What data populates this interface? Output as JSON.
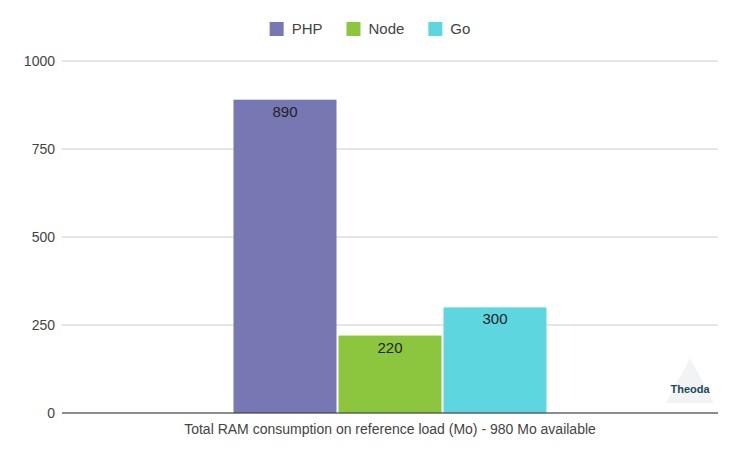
{
  "chart_data": {
    "type": "bar",
    "categories": [
      "Total RAM consumption on reference load (Mo) - 980 Mo available"
    ],
    "series": [
      {
        "name": "PHP",
        "color": "#7677b3",
        "values": [
          890
        ]
      },
      {
        "name": "Node",
        "color": "#8cc63e",
        "values": [
          220
        ]
      },
      {
        "name": "Go",
        "color": "#5ed6e0",
        "values": [
          300
        ]
      }
    ],
    "ylim": [
      0,
      1000
    ],
    "yticks": [
      0,
      250,
      500,
      750,
      1000
    ],
    "grid": true,
    "legend": "top",
    "data_labels": true,
    "annotations": [
      "Theoda"
    ]
  }
}
